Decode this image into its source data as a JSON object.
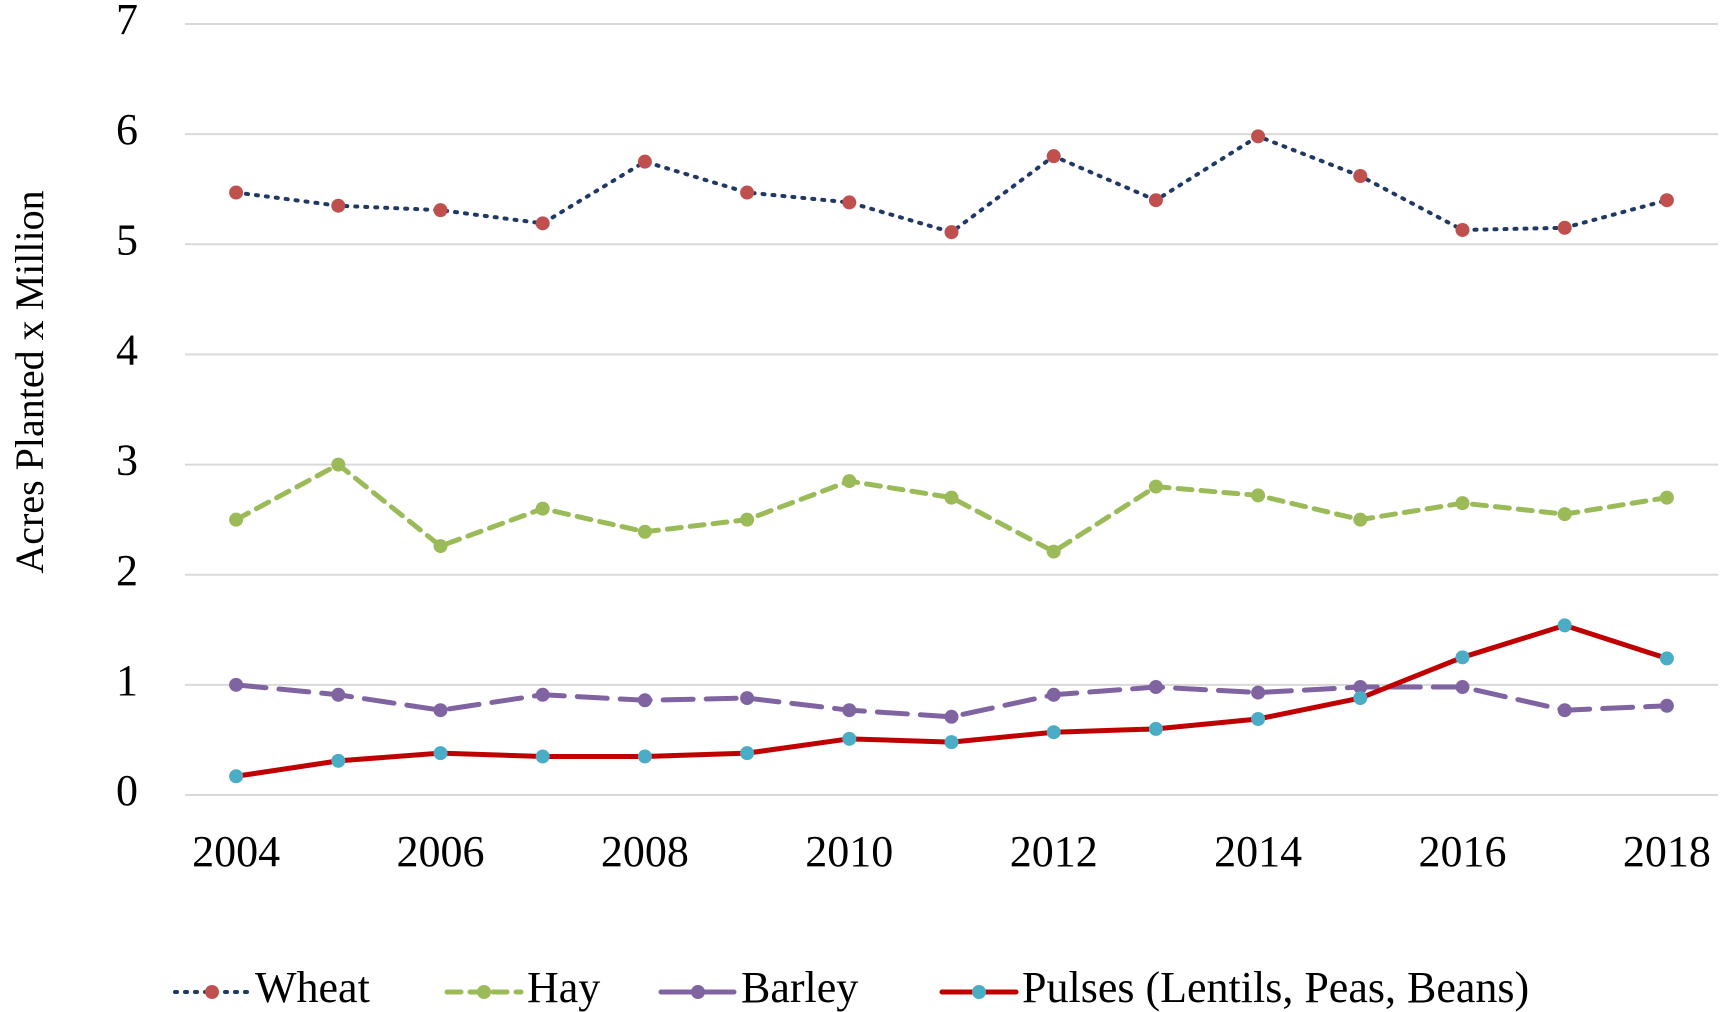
{
  "chart_data": {
    "type": "line",
    "y_label": "Acres Planted x Million",
    "x": [
      2004,
      2005,
      2006,
      2007,
      2008,
      2009,
      2010,
      2011,
      2012,
      2013,
      2014,
      2015,
      2016,
      2017,
      2018
    ],
    "xlim": [
      2003.5,
      2018.5
    ],
    "xticks": [
      2004,
      2006,
      2008,
      2010,
      2012,
      2014,
      2016,
      2018
    ],
    "ylim": [
      0,
      7
    ],
    "yticks": [
      0,
      1,
      2,
      3,
      4,
      5,
      6,
      7
    ],
    "grid": true,
    "legend": "bottom",
    "series": [
      {
        "name": "Wheat",
        "color": "#1f3864",
        "marker_color": "#c0504d",
        "line_style": "dotted",
        "values": [
          5.47,
          5.35,
          5.31,
          5.19,
          5.75,
          5.47,
          5.38,
          5.11,
          5.8,
          5.4,
          5.98,
          5.62,
          5.13,
          5.15,
          5.4
        ]
      },
      {
        "name": "Hay",
        "color": "#9bbb59",
        "marker_color": "#9bbb59",
        "line_style": "dashed",
        "values": [
          2.5,
          3.0,
          2.26,
          2.6,
          2.39,
          2.5,
          2.85,
          2.7,
          2.21,
          2.8,
          2.72,
          2.5,
          2.65,
          2.55,
          2.7
        ]
      },
      {
        "name": "Barley",
        "color": "#8064a2",
        "marker_color": "#8064a2",
        "line_style": "long-dashed",
        "values": [
          1.0,
          0.91,
          0.77,
          0.91,
          0.86,
          0.88,
          0.77,
          0.71,
          0.91,
          0.98,
          0.93,
          0.98,
          0.98,
          0.77,
          0.81
        ]
      },
      {
        "name": "Pulses (Lentils, Peas, Beans)",
        "color": "#c00000",
        "marker_color": "#4bacc6",
        "line_style": "solid",
        "values": [
          0.17,
          0.31,
          0.38,
          0.35,
          0.35,
          0.38,
          0.51,
          0.48,
          0.57,
          0.6,
          0.69,
          0.88,
          1.25,
          1.54,
          1.24
        ]
      }
    ]
  }
}
